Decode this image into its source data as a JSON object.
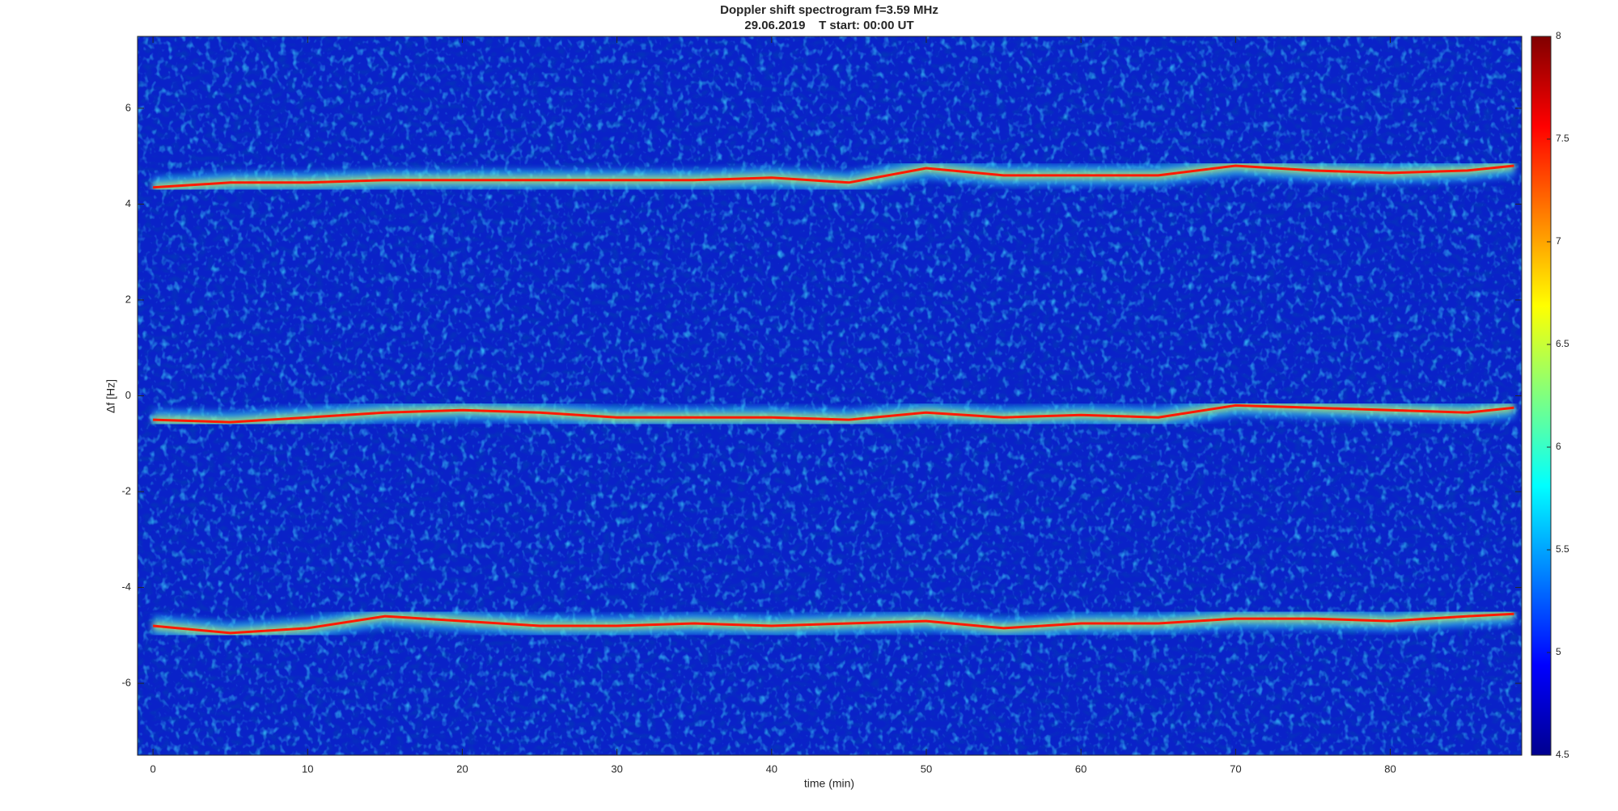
{
  "chart_data": {
    "type": "spectrogram",
    "title": "Doppler shift spectrogram f=3.59 MHz",
    "subtitle": "29.06.2019    T start: 00:00 UT",
    "xlabel": "time (min)",
    "ylabel": "Δf [Hz]",
    "x": [
      0,
      5,
      10,
      15,
      20,
      25,
      30,
      35,
      40,
      45,
      50,
      55,
      60,
      65,
      70,
      75,
      80,
      85,
      88
    ],
    "series": [
      {
        "color": "#ff1a00",
        "values": [
          4.35,
          4.45,
          4.45,
          4.5,
          4.5,
          4.5,
          4.5,
          4.5,
          4.55,
          4.45,
          4.75,
          4.6,
          4.6,
          4.6,
          4.8,
          4.7,
          4.65,
          4.7,
          4.8
        ]
      },
      {
        "color": "#ff1a00",
        "values": [
          -0.5,
          -0.55,
          -0.45,
          -0.35,
          -0.3,
          -0.35,
          -0.45,
          -0.45,
          -0.45,
          -0.5,
          -0.35,
          -0.45,
          -0.4,
          -0.45,
          -0.2,
          -0.25,
          -0.3,
          -0.35,
          -0.25
        ]
      },
      {
        "color": "#ff1a00",
        "values": [
          -4.8,
          -4.95,
          -4.85,
          -4.6,
          -4.7,
          -4.8,
          -4.8,
          -4.75,
          -4.8,
          -4.75,
          -4.7,
          -4.85,
          -4.75,
          -4.75,
          -4.65,
          -4.65,
          -4.7,
          -4.6,
          -4.55
        ]
      }
    ],
    "xlim": [
      -1,
      88.5
    ],
    "xticks": [
      0,
      10,
      20,
      30,
      40,
      50,
      60,
      70,
      80
    ],
    "ylim": [
      -7.5,
      7.5
    ],
    "yticks": [
      -6,
      -4,
      -2,
      0,
      2,
      4,
      6
    ],
    "clim": [
      4.5,
      8
    ],
    "cticks": [
      4.5,
      5,
      5.5,
      6,
      6.5,
      7,
      7.5,
      8
    ],
    "background_color": "#0a22c8",
    "grid": false
  }
}
